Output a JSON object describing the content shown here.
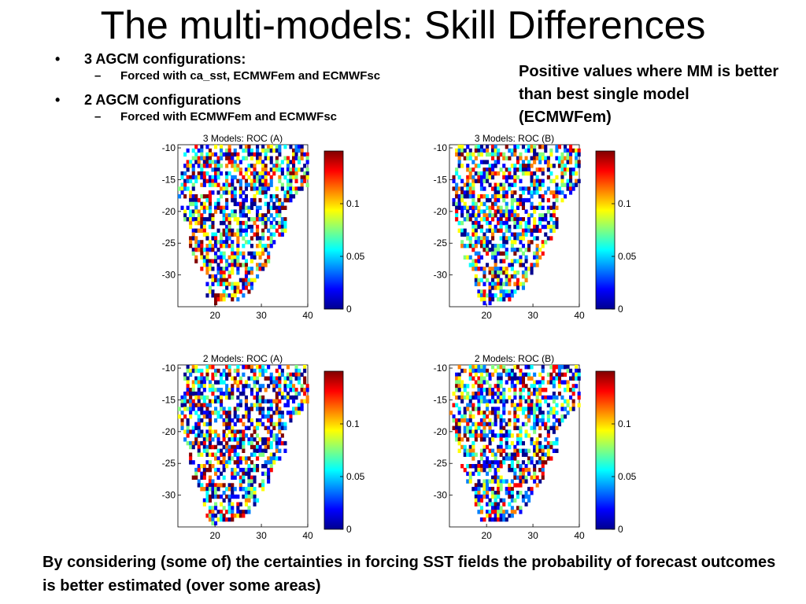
{
  "slide": {
    "title": "The multi-models: Skill Differences",
    "bullets": [
      {
        "marker": "•",
        "text": "3 AGCM configurations:",
        "sub": [
          {
            "marker": "–",
            "text": "Forced with ca_sst, ECMWFem and ECMWFsc"
          }
        ]
      },
      {
        "marker": "•",
        "text": "2 AGCM configurations",
        "sub": [
          {
            "marker": "–",
            "text": "Forced with ECMWFem and ECMWFsc"
          }
        ]
      }
    ],
    "note": "Positive values where MM is better than best single model (ECMWFem)",
    "footer": "By considering (some of) the certainties in forcing SST fields the probability of forecast outcomes is better estimated (over some areas)"
  },
  "chart_data": [
    {
      "type": "heatmap",
      "title": "3 Models: ROC (A)",
      "x_ticks": [
        "20",
        "30",
        "40"
      ],
      "y_ticks": [
        "-10",
        "-15",
        "-20",
        "-25",
        "-30"
      ],
      "xlim": [
        12,
        40
      ],
      "ylim": [
        -35,
        -9.5
      ],
      "colorbar": {
        "ticks": [
          "0.1",
          "0.05",
          "0"
        ],
        "range": [
          0,
          0.15
        ],
        "colormap": "jet"
      }
    },
    {
      "type": "heatmap",
      "title": "3 Models: ROC (B)",
      "x_ticks": [
        "20",
        "30",
        "40"
      ],
      "y_ticks": [
        "-10",
        "-15",
        "-20",
        "-25",
        "-30"
      ],
      "xlim": [
        12,
        40
      ],
      "ylim": [
        -35,
        -9.5
      ],
      "colorbar": {
        "ticks": [
          "0.1",
          "0.05",
          "0"
        ],
        "range": [
          0,
          0.15
        ],
        "colormap": "jet"
      }
    },
    {
      "type": "heatmap",
      "title": "2 Models: ROC (A)",
      "x_ticks": [
        "20",
        "30",
        "40"
      ],
      "y_ticks": [
        "-10",
        "-15",
        "-20",
        "-25",
        "-30"
      ],
      "xlim": [
        12,
        40
      ],
      "ylim": [
        -35,
        -9.5
      ],
      "colorbar": {
        "ticks": [
          "0.1",
          "0.05",
          "0"
        ],
        "range": [
          0,
          0.15
        ],
        "colormap": "jet"
      }
    },
    {
      "type": "heatmap",
      "title": "2 Models: ROC (B)",
      "x_ticks": [
        "20",
        "30",
        "40"
      ],
      "y_ticks": [
        "-10",
        "-15",
        "-20",
        "-25",
        "-30"
      ],
      "xlim": [
        12,
        40
      ],
      "ylim": [
        -35,
        -9.5
      ],
      "colorbar": {
        "ticks": [
          "0.1",
          "0.05",
          "0"
        ],
        "range": [
          0,
          0.15
        ],
        "colormap": "jet"
      }
    }
  ]
}
